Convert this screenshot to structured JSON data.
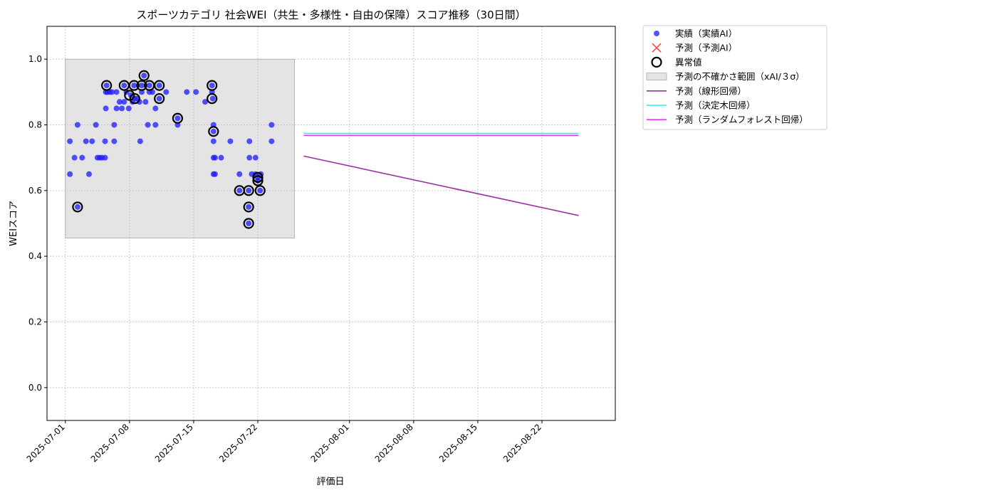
{
  "chart_data": {
    "type": "scatter",
    "title": "スポーツカテゴリ 社会WEI（共生・多様性・自由の保障）スコア推移（30日間）",
    "xlabel": "評価日",
    "ylabel": "WEIスコア",
    "xlim": [
      "2025-06-29",
      "2025-08-30"
    ],
    "ylim": [
      -0.1,
      1.1
    ],
    "yticks": [
      0.0,
      0.2,
      0.4,
      0.6,
      0.8,
      1.0
    ],
    "ytick_labels": [
      "0.0",
      "0.2",
      "0.4",
      "0.6",
      "0.8",
      "1.0"
    ],
    "xticks": [
      "2025-07-01",
      "2025-07-08",
      "2025-07-15",
      "2025-07-22",
      "2025-08-01",
      "2025-08-08",
      "2025-08-15",
      "2025-08-22"
    ],
    "grid": true,
    "legend_position": "outside-right-top",
    "uncertainty_band": {
      "name": "予測の不確かさ範囲（xAI/３σ）",
      "x": [
        "2025-07-01",
        "2025-07-26"
      ],
      "y": [
        0.455,
        1.0
      ],
      "color": "#bbbbbb"
    },
    "series": [
      {
        "name": "実績（実績AI）",
        "kind": "scatter",
        "color": "#1a1aff",
        "points": [
          [
            "2025-07-01T12:00",
            0.75
          ],
          [
            "2025-07-01T12:00",
            0.65
          ],
          [
            "2025-07-02T00:00",
            0.7
          ],
          [
            "2025-07-02T08:00",
            0.8
          ],
          [
            "2025-07-02T08:00",
            0.55
          ],
          [
            "2025-07-02T20:00",
            0.7
          ],
          [
            "2025-07-03T06:00",
            0.75
          ],
          [
            "2025-07-03T14:00",
            0.65
          ],
          [
            "2025-07-03T22:00",
            0.75
          ],
          [
            "2025-07-04T08:00",
            0.8
          ],
          [
            "2025-07-04T12:00",
            0.7
          ],
          [
            "2025-07-04T18:00",
            0.7
          ],
          [
            "2025-07-05T00:00",
            0.7
          ],
          [
            "2025-07-05T08:00",
            0.75
          ],
          [
            "2025-07-05T08:00",
            0.7
          ],
          [
            "2025-07-05T10:00",
            0.85
          ],
          [
            "2025-07-05T10:00",
            0.9
          ],
          [
            "2025-07-05T12:00",
            0.92
          ],
          [
            "2025-07-05T14:00",
            0.9
          ],
          [
            "2025-07-05T20:00",
            0.9
          ],
          [
            "2025-07-06T02:00",
            0.9
          ],
          [
            "2025-07-06T08:00",
            0.8
          ],
          [
            "2025-07-06T08:00",
            0.75
          ],
          [
            "2025-07-06T14:00",
            0.9
          ],
          [
            "2025-07-06T14:00",
            0.85
          ],
          [
            "2025-07-06T22:00",
            0.87
          ],
          [
            "2025-07-07T04:00",
            0.85
          ],
          [
            "2025-07-07T10:00",
            0.92
          ],
          [
            "2025-07-07T10:00",
            0.87
          ],
          [
            "2025-07-07T16:00",
            0.9
          ],
          [
            "2025-07-07T22:00",
            0.85
          ],
          [
            "2025-07-08T04:00",
            0.89
          ],
          [
            "2025-07-08T08:00",
            0.87
          ],
          [
            "2025-07-08T12:00",
            0.92
          ],
          [
            "2025-07-08T14:00",
            0.88
          ],
          [
            "2025-07-08T20:00",
            0.88
          ],
          [
            "2025-07-09T02:00",
            0.87
          ],
          [
            "2025-07-09T04:00",
            0.75
          ],
          [
            "2025-07-09T08:00",
            0.92
          ],
          [
            "2025-07-09T08:00",
            0.9
          ],
          [
            "2025-07-09T14:00",
            0.95
          ],
          [
            "2025-07-09T18:00",
            0.87
          ],
          [
            "2025-07-10T00:00",
            0.8
          ],
          [
            "2025-07-10T04:00",
            0.92
          ],
          [
            "2025-07-10T04:00",
            0.9
          ],
          [
            "2025-07-10T12:00",
            0.9
          ],
          [
            "2025-07-10T20:00",
            0.8
          ],
          [
            "2025-07-10T20:00",
            0.85
          ],
          [
            "2025-07-11T06:00",
            0.92
          ],
          [
            "2025-07-11T06:00",
            0.88
          ],
          [
            "2025-07-12T00:00",
            0.9
          ],
          [
            "2025-07-13T06:00",
            0.82
          ],
          [
            "2025-07-13T06:00",
            0.8
          ],
          [
            "2025-07-14T06:00",
            0.9
          ],
          [
            "2025-07-15T06:00",
            0.9
          ],
          [
            "2025-07-16T06:00",
            0.87
          ],
          [
            "2025-07-17T00:00",
            0.92
          ],
          [
            "2025-07-17T00:00",
            0.9
          ],
          [
            "2025-07-17T02:00",
            0.88
          ],
          [
            "2025-07-17T04:00",
            0.8
          ],
          [
            "2025-07-17T04:00",
            0.78
          ],
          [
            "2025-07-17T04:00",
            0.75
          ],
          [
            "2025-07-17T04:00",
            0.7
          ],
          [
            "2025-07-17T04:00",
            0.65
          ],
          [
            "2025-07-17T08:00",
            0.7
          ],
          [
            "2025-07-17T08:00",
            0.65
          ],
          [
            "2025-07-18T00:00",
            0.7
          ],
          [
            "2025-07-19T00:00",
            0.75
          ],
          [
            "2025-07-20T00:00",
            0.6
          ],
          [
            "2025-07-20T00:00",
            0.65
          ],
          [
            "2025-07-21T00:00",
            0.6
          ],
          [
            "2025-07-21T00:00",
            0.55
          ],
          [
            "2025-07-21T00:00",
            0.5
          ],
          [
            "2025-07-21T02:00",
            0.75
          ],
          [
            "2025-07-21T02:00",
            0.7
          ],
          [
            "2025-07-21T08:00",
            0.65
          ],
          [
            "2025-07-21T18:00",
            0.7
          ],
          [
            "2025-07-21T18:00",
            0.65
          ],
          [
            "2025-07-22T00:00",
            0.64
          ],
          [
            "2025-07-22T00:00",
            0.63
          ],
          [
            "2025-07-22T06:00",
            0.6
          ],
          [
            "2025-07-22T08:00",
            0.65
          ],
          [
            "2025-07-23T12:00",
            0.8
          ],
          [
            "2025-07-23T12:00",
            0.75
          ]
        ]
      },
      {
        "name": "予測（予測AI）",
        "kind": "scatter",
        "marker": "x",
        "color": "#ff4444",
        "points": []
      },
      {
        "name": "異常値",
        "kind": "scatter",
        "marker": "open-circle",
        "color": "#000000",
        "points": [
          [
            "2025-07-02T08:00",
            0.55
          ],
          [
            "2025-07-05T12:00",
            0.92
          ],
          [
            "2025-07-07T10:00",
            0.92
          ],
          [
            "2025-07-08T00:00",
            0.89
          ],
          [
            "2025-07-08T12:00",
            0.92
          ],
          [
            "2025-07-08T14:00",
            0.88
          ],
          [
            "2025-07-09T08:00",
            0.92
          ],
          [
            "2025-07-09T14:00",
            0.95
          ],
          [
            "2025-07-10T04:00",
            0.92
          ],
          [
            "2025-07-11T06:00",
            0.92
          ],
          [
            "2025-07-11T06:00",
            0.88
          ],
          [
            "2025-07-13T06:00",
            0.82
          ],
          [
            "2025-07-17T00:00",
            0.92
          ],
          [
            "2025-07-17T00:00",
            0.88
          ],
          [
            "2025-07-17T04:00",
            0.78
          ],
          [
            "2025-07-20T00:00",
            0.6
          ],
          [
            "2025-07-21T00:00",
            0.6
          ],
          [
            "2025-07-21T00:00",
            0.55
          ],
          [
            "2025-07-21T00:00",
            0.5
          ],
          [
            "2025-07-22T00:00",
            0.64
          ],
          [
            "2025-07-22T00:00",
            0.63
          ],
          [
            "2025-07-22T06:00",
            0.6
          ]
        ]
      },
      {
        "name": "予測（線形回帰）",
        "kind": "line",
        "color": "#9b30a0",
        "points": [
          [
            "2025-07-27",
            0.705
          ],
          [
            "2025-08-26",
            0.524
          ]
        ]
      },
      {
        "name": "予測（決定木回帰）",
        "kind": "line",
        "color": "#22eeff",
        "points": [
          [
            "2025-07-27",
            0.774
          ],
          [
            "2025-08-26",
            0.774
          ]
        ]
      },
      {
        "name": "予測（ランダムフォレスト回帰）",
        "kind": "line",
        "color": "#ee33ee",
        "points": [
          [
            "2025-07-27",
            0.768
          ],
          [
            "2025-08-26",
            0.768
          ]
        ]
      }
    ]
  }
}
